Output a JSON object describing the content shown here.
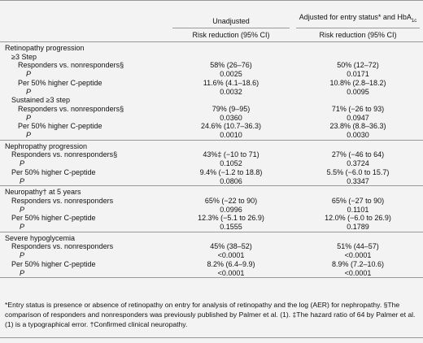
{
  "header": {
    "col1": "Unadjusted",
    "col2": "Adjusted for entry status* and HbA",
    "col2_sub": "1c",
    "sub1": "Risk reduction (95% CI)",
    "sub2": "Risk reduction (95% CI)"
  },
  "sections": [
    {
      "title": "Retinopathy progression",
      "groups": [
        {
          "title": "≥3 Step",
          "rows": [
            {
              "label": "Responders vs. nonresponders§",
              "values": [
                "58% (26–76)",
                "50% (12–72)"
              ],
              "p_label": "P",
              "p_values": [
                "0.0025",
                "0.0171"
              ]
            },
            {
              "label": "Per 50% higher C-peptide",
              "values": [
                "11.6% (4.1–18.6)",
                "10.8% (2.8–18.2)"
              ],
              "p_label": "P",
              "p_values": [
                "0.0032",
                "0.0095"
              ]
            }
          ]
        },
        {
          "title": "Sustained ≥3 step",
          "rows": [
            {
              "label": "Responders vs. nonresponders§",
              "values": [
                "79% (9–95)",
                "71% (−26 to 93)"
              ],
              "p_label": "P",
              "p_values": [
                "0.0360",
                "0.0947"
              ]
            },
            {
              "label": "Per 50% higher C-peptide",
              "values": [
                "24.6% (10.7–36.3)",
                "23.8% (8.8–36.3)"
              ],
              "p_label": "P",
              "p_values": [
                "0.0010",
                "0.0030"
              ]
            }
          ]
        }
      ]
    },
    {
      "title": "Nephropathy progression",
      "groups": [
        {
          "rows": [
            {
              "label": "Responders vs. nonresponders§",
              "values": [
                "43%‡ (−10 to 71)",
                "27% (−46 to 64)"
              ],
              "p_label": "P",
              "p_values": [
                "0.1052",
                "0.3724"
              ]
            },
            {
              "label": "Per 50% higher C-peptide",
              "values": [
                "9.4% (−1.2 to 18.8)",
                "5.5% (−6.0 to 15.7)"
              ],
              "p_label": "P",
              "p_values": [
                "0.0806",
                "0.3347"
              ]
            }
          ]
        }
      ]
    },
    {
      "title": "Neuropathy† at 5 years",
      "groups": [
        {
          "rows": [
            {
              "label": "Responders vs. nonresponders",
              "values": [
                "65% (−22 to 90)",
                "65% (−27 to 90)"
              ],
              "p_label": "P",
              "p_values": [
                "0.0996",
                "0.1101"
              ]
            },
            {
              "label": "Per 50% higher C-peptide",
              "values": [
                "12.3% (−5.1 to 26.9)",
                "12.0% (−6.0 to 26.9)"
              ],
              "p_label": "P",
              "p_values": [
                "0.1555",
                "0.1789"
              ]
            }
          ]
        }
      ]
    },
    {
      "title": "Severe hypoglycemia",
      "groups": [
        {
          "rows": [
            {
              "label": "Responders vs. nonresponders",
              "values": [
                "45% (38–52)",
                "51% (44–57)"
              ],
              "p_label": "P",
              "p_values": [
                "<0.0001",
                "<0.0001"
              ]
            },
            {
              "label": "Per 50% higher C-peptide",
              "values": [
                "8.2% (6.4–9.9)",
                "8.9% (7.2–10.6)"
              ],
              "p_label": "P",
              "p_values": [
                "<0.0001",
                "<0.0001"
              ]
            }
          ]
        }
      ]
    }
  ],
  "footnote": "*Entry status is presence or absence of retinopathy on entry for analysis of retinopathy and the log (AER) for nephropathy. §The comparison of responders and nonresponders was previously published by Palmer et al. (1). ‡The hazard ratio of 64 by Palmer et al. (1) is a typographical error. †Confirmed clinical neuropathy."
}
